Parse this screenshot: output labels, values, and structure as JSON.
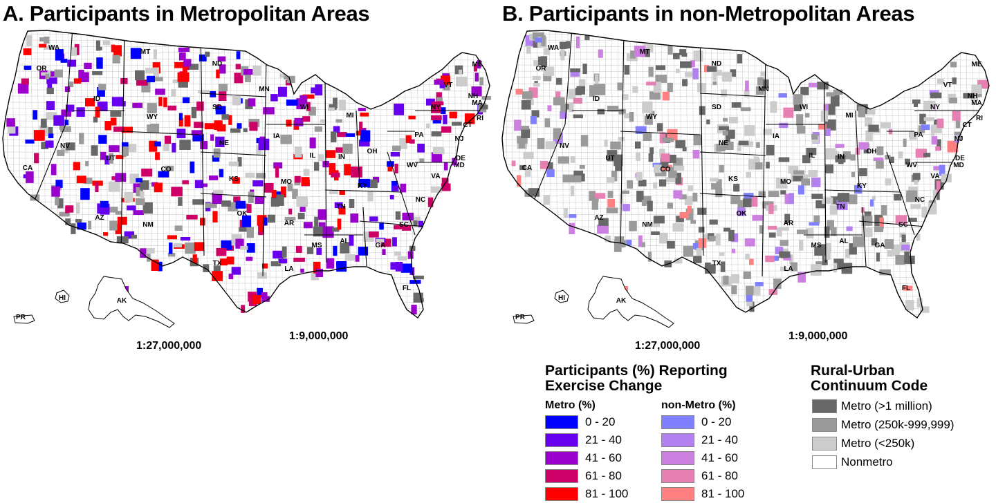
{
  "panels": [
    {
      "id": "A",
      "title": "A. Participants in Metropolitan Areas",
      "scale_small": "1:27,000,000",
      "scale_large": "1:9,000,000"
    },
    {
      "id": "B",
      "title": "B. Participants in non-Metropolitan Areas",
      "scale_small": "1:27,000,000",
      "scale_large": "1:9,000,000"
    }
  ],
  "state_labels": [
    "WA",
    "OR",
    "CA",
    "NV",
    "ID",
    "MT",
    "WY",
    "UT",
    "AZ",
    "CO",
    "NM",
    "ND",
    "SD",
    "NE",
    "KS",
    "OK",
    "TX",
    "MN",
    "IA",
    "MO",
    "AR",
    "LA",
    "WI",
    "IL",
    "MI",
    "IN",
    "OH",
    "KY",
    "TN",
    "MS",
    "AL",
    "GA",
    "FL",
    "SC",
    "NC",
    "VA",
    "WV",
    "PA",
    "NY",
    "ME",
    "VT",
    "NH",
    "MA",
    "RI",
    "CT",
    "NJ",
    "DE",
    "MD",
    "AK",
    "HI",
    "PR"
  ],
  "legend": {
    "title_line1": "Participants (%) Reporting",
    "title_line2": "Exercise Change",
    "metro_header": "Metro (%)",
    "nonmetro_header": "non-Metro (%)",
    "ranges": [
      "0 - 20",
      "21 - 40",
      "41 - 60",
      "61 - 80",
      "81 - 100"
    ],
    "metro_colors": [
      "#0000ff",
      "#6600ee",
      "#9900cc",
      "#cc0066",
      "#ff0000"
    ],
    "nonmetro_colors": [
      "#8080ff",
      "#b380f0",
      "#cc80e0",
      "#e680b3",
      "#ff8080"
    ]
  },
  "ruc_legend": {
    "title_line1": "Rural-Urban",
    "title_line2": "Continuum Code",
    "items": [
      {
        "label": "Metro (>1 million)",
        "color": "#686868"
      },
      {
        "label": "Metro (250k-999,999)",
        "color": "#9a9a9a"
      },
      {
        "label": "Metro (<250k)",
        "color": "#cccccc"
      },
      {
        "label": "Nonmetro",
        "color": "#ffffff"
      }
    ]
  }
}
